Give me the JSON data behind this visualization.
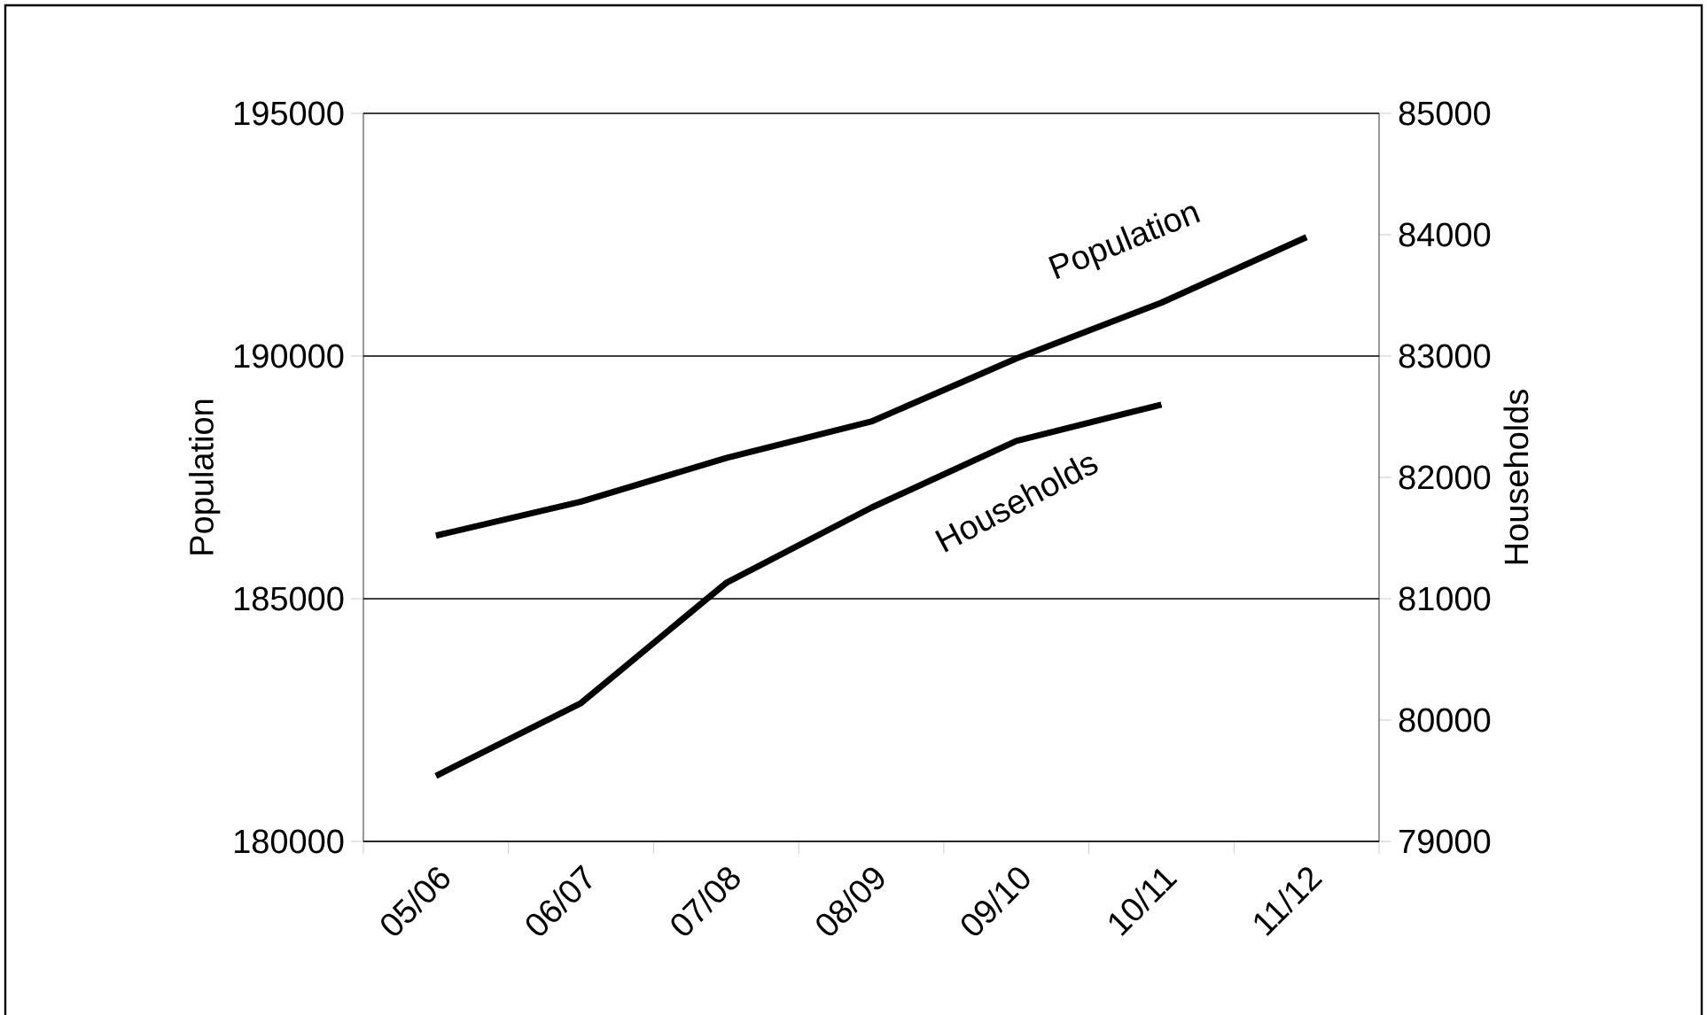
{
  "chart_data": {
    "type": "line",
    "categories": [
      "05/06",
      "06/07",
      "07/08",
      "08/09",
      "09/10",
      "10/11",
      "11/12"
    ],
    "series": [
      {
        "name": "Population",
        "color": "#000000",
        "values": [
          186300,
          187000,
          187900,
          188650,
          189950,
          191100,
          192450
        ]
      },
      {
        "name": "Households",
        "color": "#000000",
        "axis": "y2",
        "values": [
          79540,
          80140,
          81130,
          81750,
          82300,
          82600,
          null
        ]
      }
    ],
    "ylabel": "Population",
    "y2label": "Households",
    "ylim": [
      180000,
      195000
    ],
    "yticks": [
      180000,
      185000,
      190000,
      195000
    ],
    "y2lim": [
      79000,
      85000
    ],
    "y2ticks": [
      79000,
      80000,
      81000,
      82000,
      83000,
      84000,
      85000
    ],
    "grid": "y",
    "marker": "none",
    "line_style": "solid"
  }
}
